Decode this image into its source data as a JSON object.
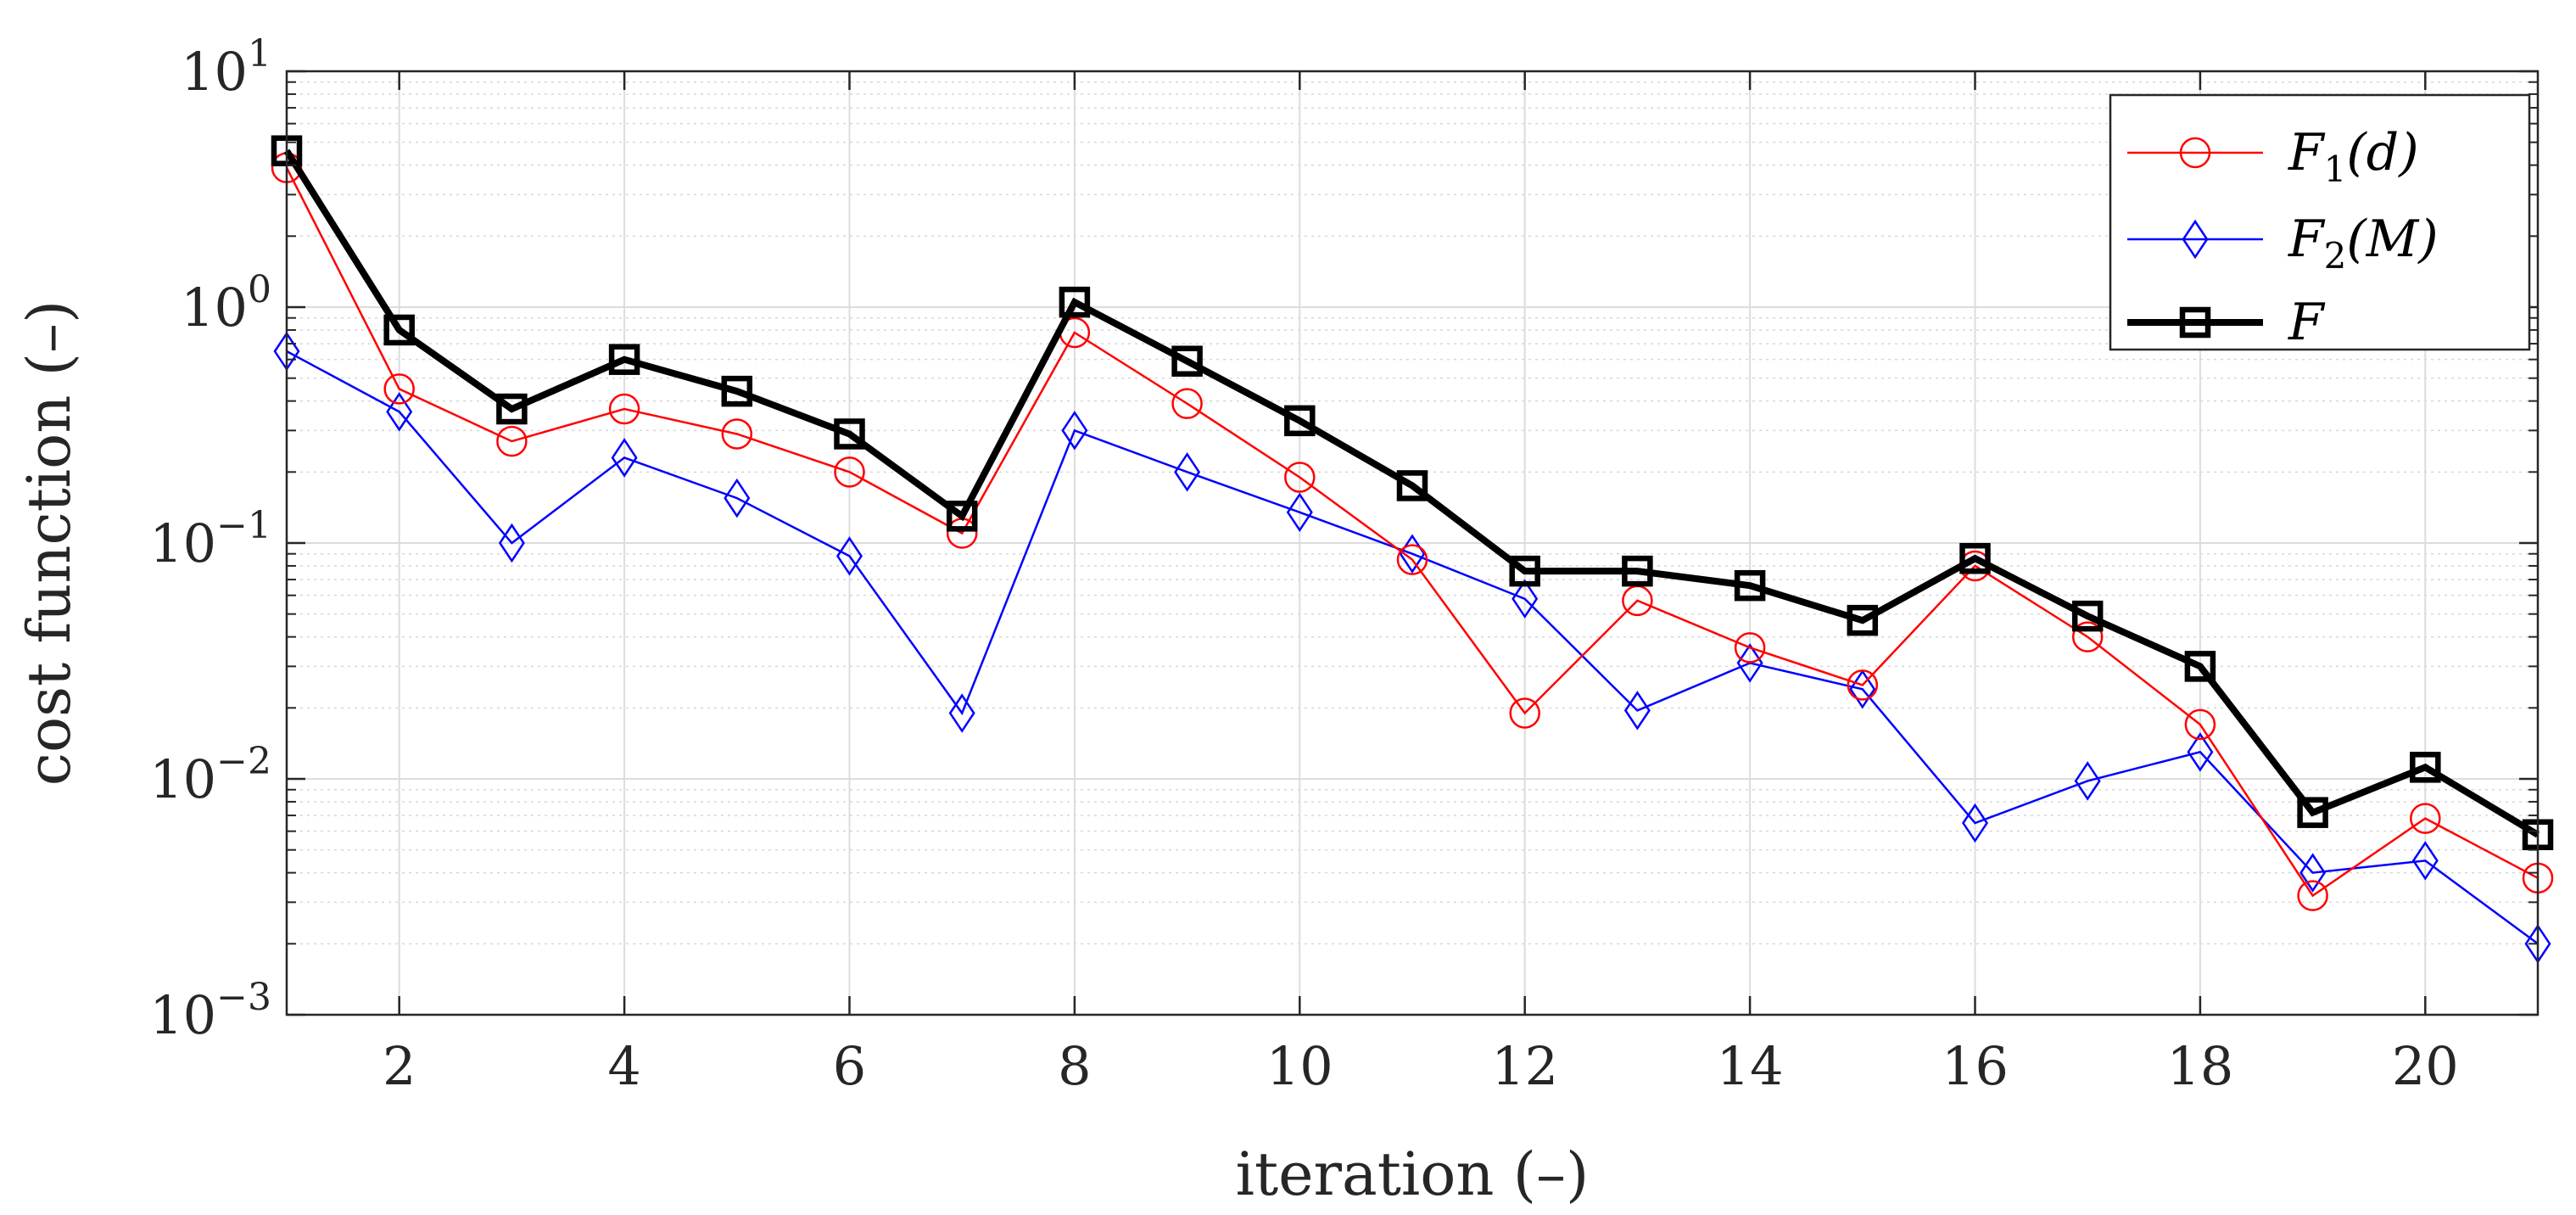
{
  "chart_data": {
    "type": "line",
    "yscale": "log",
    "xlabel": "iteration (–)",
    "ylabel": "cost function (–)",
    "xlim": [
      1,
      21
    ],
    "ylim": [
      0.001,
      10
    ],
    "xticks": [
      2,
      4,
      6,
      8,
      10,
      12,
      14,
      16,
      18,
      20
    ],
    "xtick_labels": [
      "2",
      "4",
      "6",
      "8",
      "10",
      "12",
      "14",
      "16",
      "18",
      "20"
    ],
    "yticks": [
      {
        "value": 0.001,
        "base": "10",
        "exp": "−3"
      },
      {
        "value": 0.01,
        "base": "10",
        "exp": "−2"
      },
      {
        "value": 0.1,
        "base": "10",
        "exp": "−1"
      },
      {
        "value": 1,
        "base": "10",
        "exp": "0"
      },
      {
        "value": 10,
        "base": "10",
        "exp": "1"
      }
    ],
    "grid": true,
    "legend_position": "top-right",
    "x": [
      1,
      2,
      3,
      4,
      5,
      6,
      7,
      8,
      9,
      10,
      11,
      12,
      13,
      14,
      15,
      16,
      17,
      18,
      19,
      20,
      21
    ],
    "series": [
      {
        "name": "F1(d)",
        "label_parts": {
          "main": "F",
          "sub": "1",
          "arg": "(d)"
        },
        "color": "#ff0000",
        "marker": "circle",
        "values": [
          3.9,
          0.45,
          0.27,
          0.37,
          0.29,
          0.2,
          0.11,
          0.78,
          0.39,
          0.19,
          0.085,
          0.019,
          0.057,
          0.036,
          0.025,
          0.08,
          0.04,
          0.017,
          0.0032,
          0.0068,
          0.0038
        ]
      },
      {
        "name": "F2(M)",
        "label_parts": {
          "main": "F",
          "sub": "2",
          "arg": "(M)"
        },
        "color": "#0000ff",
        "marker": "diamond",
        "values": [
          0.65,
          0.36,
          0.1,
          0.23,
          0.155,
          0.088,
          0.019,
          0.3,
          0.2,
          0.135,
          0.09,
          0.058,
          0.0195,
          0.031,
          0.024,
          0.0065,
          0.0098,
          0.013,
          0.004,
          0.0045,
          0.002
        ]
      },
      {
        "name": "F",
        "label_parts": {
          "main": "F",
          "sub": "",
          "arg": ""
        },
        "color": "#000000",
        "marker": "square",
        "values": [
          4.6,
          0.8,
          0.37,
          0.6,
          0.44,
          0.29,
          0.13,
          1.05,
          0.59,
          0.33,
          0.175,
          0.076,
          0.076,
          0.066,
          0.047,
          0.086,
          0.049,
          0.03,
          0.0072,
          0.0112,
          0.0058
        ]
      }
    ]
  }
}
